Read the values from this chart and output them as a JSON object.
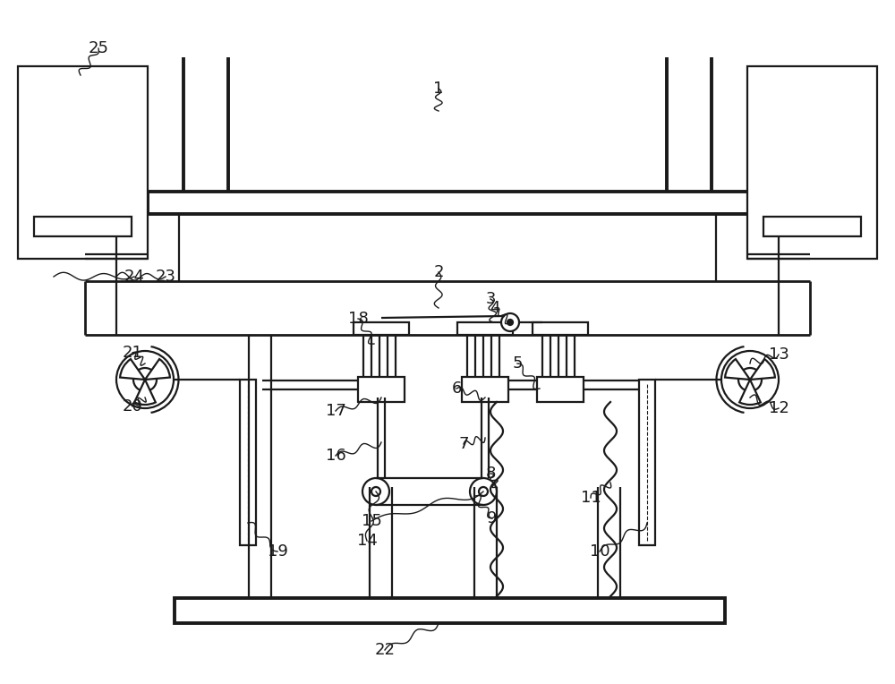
{
  "bg_color": "#ffffff",
  "line_color": "#1a1a1a",
  "lw": 1.6,
  "tlw": 2.8
}
